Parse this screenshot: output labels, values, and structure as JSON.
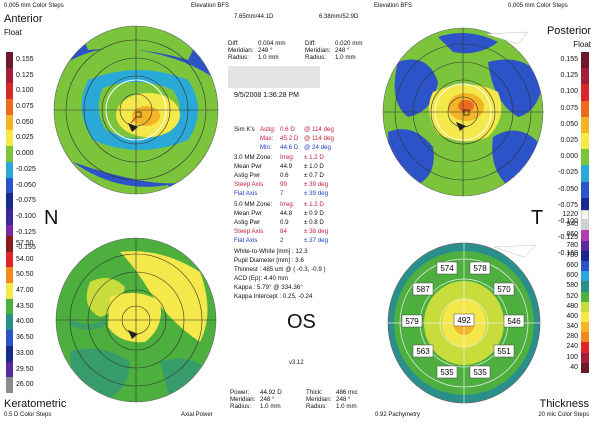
{
  "header": {
    "left_steps": "0.005 mm Color Steps",
    "left_title": "Elevation BFS",
    "left_bfs": "7.65mm/44.1D",
    "right_bfs": "6.38mm/52.9D",
    "right_title": "Elevation BFS",
    "right_steps": "0.005 mm Color Steps"
  },
  "labels": {
    "anterior": "Anterior",
    "float_left": "Float",
    "posterior": "Posterior",
    "float_right": "Float",
    "nasal": "N",
    "temporal": "T",
    "eye": "OS",
    "keratometric": "Keratometric",
    "bottom_left_steps": "0.5 D Color Steps",
    "axial_power": "Axial Power",
    "pachymetry": "0.92 Pachymetry",
    "thickness": "Thickness",
    "bottom_right_steps": "20 mic Color Steps",
    "version": "v3.12"
  },
  "top_diffs": {
    "left": {
      "diff_label": "Diff:",
      "diff_value": "0.004 mm",
      "meridian_label": "Meridian:",
      "meridian_value": "248 °",
      "radius_label": "Radius:",
      "radius_value": "1.0 mm"
    },
    "right": {
      "diff_label": "Diff:",
      "diff_value": "0.020 mm",
      "meridian_label": "Meridian:",
      "meridian_value": "248 °",
      "radius_label": "Radius:",
      "radius_value": "1.0 mm"
    }
  },
  "bottom_values": {
    "left": {
      "power_label": "Power:",
      "power_value": "44.92 D",
      "meridian_label": "Meridian:",
      "meridian_value": "248 °",
      "radius_label": "Radius:",
      "radius_value": "1.0 mm"
    },
    "right": {
      "thick_label": "Thick:",
      "thick_value": "486 mic",
      "meridian_label": "Meridian:",
      "meridian_value": "248 °",
      "radius_label": "Radius:",
      "radius_value": "1.0 mm"
    }
  },
  "exam_date": "9/5/2008 1:36:28 PM",
  "summary": {
    "simk": {
      "label": "Sim K's",
      "astig_label": "Astig:",
      "astig_value": "0.6 D",
      "astig_axis": "@ 114 deg",
      "max_label": "Max:",
      "max_value": "45.2 D",
      "max_axis": "@ 114 deg",
      "min_label": "Min:",
      "min_value": "44.6 D",
      "min_axis": "@ 24 deg"
    },
    "zone3": {
      "label": "3.0 MM Zone:",
      "irreg_label": "Irreg:",
      "irreg_value": "± 1.2 D",
      "mean_label": "Mean Pwr",
      "mean_value": "44.9",
      "mean_err": "± 1.0 D",
      "astig_label": "Astig Pwr",
      "astig_value": "0.6",
      "astig_err": "± 0.7 D",
      "steep_label": "Steep Axis",
      "steep_value": "99",
      "steep_err": "± 39 deg",
      "flat_label": "Flat Axis",
      "flat_value": "7",
      "flat_err": "± 39 deg"
    },
    "zone5": {
      "label": "5.0 MM Zone:",
      "irreg_label": "Irreg:",
      "irreg_value": "± 1.2 D",
      "mean_label": "Mean Pwr",
      "mean_value": "44.8",
      "mean_err": "± 0.9 D",
      "astig_label": "Astig Pwr",
      "astig_value": "0.9",
      "astig_err": "± 0.8 D",
      "steep_label": "Steep Axis",
      "steep_value": "84",
      "steep_err": "± 38 deg",
      "flat_label": "Flat Axis",
      "flat_value": "2",
      "flat_err": "± 37 deg"
    },
    "white_to_white": "White-to-White [mm] : 12.3",
    "pupil": "Pupil Diameter [mm] : 3.6",
    "thinnest": "Thinnest : 485 um @ ( -0.3, -0.9 )",
    "acd": "ACD (Ep): 4.40 mm",
    "kappa": "Kappa : 5.79° @ 334.36°",
    "kappa_intercept": "Kappa Intercept : 0.25, -0.24"
  },
  "scales": {
    "elevation_left": [
      "0.155",
      "0.125",
      "0.100",
      "0.075",
      "0.050",
      "0.025",
      "0.000",
      "-0.025",
      "-0.050",
      "-0.075",
      "-0.100",
      "-0.125",
      "-0.155"
    ],
    "elevation_right": [
      "0.155",
      "0.125",
      "0.100",
      "0.075",
      "0.050",
      "0.025",
      "0.000",
      "-0.025",
      "-0.050",
      "-0.075",
      "-0.100",
      "-0.125",
      "-0.160"
    ],
    "power_left": [
      "57.50",
      "54.00",
      "50.50",
      "47.00",
      "43.50",
      "40.00",
      "36.50",
      "33.00",
      "29.50",
      "26.00"
    ],
    "thickness_right": [
      "1220",
      "940",
      "860",
      "780",
      "700",
      "660",
      "600",
      "580",
      "520",
      "480",
      "400",
      "340",
      "280",
      "240",
      "100",
      "40"
    ]
  },
  "pachy_values": [
    "574",
    "578",
    "587",
    "570",
    "579",
    "492",
    "546",
    "563",
    "551",
    "535",
    "535"
  ],
  "colors": {
    "dark_red": "#8b1a1a",
    "red": "#e0242a",
    "orange": "#f08a1c",
    "yellow": "#f4e84a",
    "yellow_green": "#c8dc3c",
    "green": "#4caf3e",
    "teal": "#2a8f8a",
    "cyan": "#2aa8d8",
    "blue": "#2c54c8",
    "navy": "#1a2a8c",
    "purple": "#5a2a9a",
    "magenta": "#c83cb4",
    "gray": "#8c8c8c"
  }
}
